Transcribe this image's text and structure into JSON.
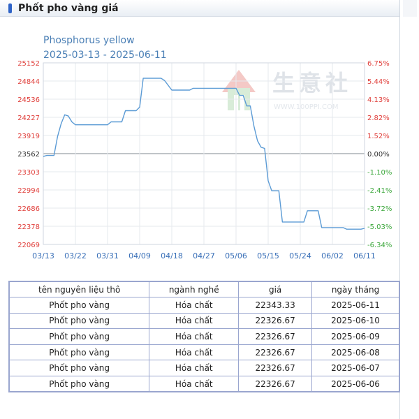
{
  "header": {
    "title": "Phốt pho vàng giá"
  },
  "chart_data": {
    "type": "line",
    "title": "Phosphorus yellow",
    "subtitle": "2025-03-13 - 2025-06-11",
    "watermark": {
      "text": "生意社",
      "subtext": "WWW.100PPI.COM"
    },
    "baseline": 23562,
    "y_left_ticks": [
      25152,
      24844,
      24536,
      24227,
      23919,
      23562,
      23303,
      22994,
      22686,
      22378,
      22069
    ],
    "y_right_ticks": [
      "6.75%",
      "5.44%",
      "4.13%",
      "2.82%",
      "1.52%",
      "0.00%",
      "-1.10%",
      "-2.41%",
      "-3.72%",
      "-5.03%",
      "-6.34%"
    ],
    "x_ticks": [
      "03/13",
      "03/22",
      "03/31",
      "04/09",
      "04/18",
      "04/27",
      "05/06",
      "05/15",
      "05/24",
      "06/02",
      "06/11"
    ],
    "ylim": [
      22069,
      25152
    ],
    "x_start": "03/13",
    "x_end": "06/11",
    "series": [
      {
        "color": "#5b9bd5",
        "points": [
          [
            "03/13",
            23562
          ],
          [
            "03/14",
            23580
          ],
          [
            "03/16",
            23580
          ],
          [
            "03/17",
            23900
          ],
          [
            "03/18",
            24120
          ],
          [
            "03/19",
            24270
          ],
          [
            "03/20",
            24250
          ],
          [
            "03/21",
            24150
          ],
          [
            "03/22",
            24100
          ],
          [
            "03/31",
            24100
          ],
          [
            "04/01",
            24150
          ],
          [
            "04/04",
            24150
          ],
          [
            "04/05",
            24340
          ],
          [
            "04/08",
            24340
          ],
          [
            "04/09",
            24400
          ],
          [
            "04/10",
            24890
          ],
          [
            "04/15",
            24890
          ],
          [
            "04/16",
            24850
          ],
          [
            "04/18",
            24690
          ],
          [
            "04/23",
            24690
          ],
          [
            "04/24",
            24720
          ],
          [
            "05/06",
            24720
          ],
          [
            "05/07",
            24600
          ],
          [
            "05/08",
            24600
          ],
          [
            "05/09",
            24420
          ],
          [
            "05/10",
            24420
          ],
          [
            "05/11",
            24080
          ],
          [
            "05/12",
            23830
          ],
          [
            "05/13",
            23720
          ],
          [
            "05/14",
            23700
          ],
          [
            "05/15",
            23150
          ],
          [
            "05/16",
            22980
          ],
          [
            "05/18",
            22980
          ],
          [
            "05/19",
            22450
          ],
          [
            "05/25",
            22450
          ],
          [
            "05/26",
            22640
          ],
          [
            "05/29",
            22640
          ],
          [
            "05/30",
            22355
          ],
          [
            "06/05",
            22355
          ],
          [
            "06/06",
            22327
          ],
          [
            "06/10",
            22327
          ],
          [
            "06/11",
            22343
          ]
        ]
      }
    ],
    "grid": true
  },
  "table": {
    "headers": [
      "tên nguyên liệu thô",
      "ngành nghề",
      "giá",
      "ngày tháng"
    ],
    "rows": [
      [
        "Phốt pho vàng",
        "Hóa chất",
        "22343.33",
        "2025-06-11"
      ],
      [
        "Phốt pho vàng",
        "Hóa chất",
        "22326.67",
        "2025-06-10"
      ],
      [
        "Phốt pho vàng",
        "Hóa chất",
        "22326.67",
        "2025-06-09"
      ],
      [
        "Phốt pho vàng",
        "Hóa chất",
        "22326.67",
        "2025-06-08"
      ],
      [
        "Phốt pho vàng",
        "Hóa chất",
        "22326.67",
        "2025-06-07"
      ],
      [
        "Phốt pho vàng",
        "Hóa chất",
        "22326.67",
        "2025-06-06"
      ]
    ]
  },
  "colors": {
    "axis_left": "#e0403c",
    "axis_right_pos": "#e0403c",
    "axis_right_neg": "#3aa63a",
    "title": "#4a7fb5",
    "x_tick": "#3a70b8",
    "line": "#5b9bd5"
  }
}
